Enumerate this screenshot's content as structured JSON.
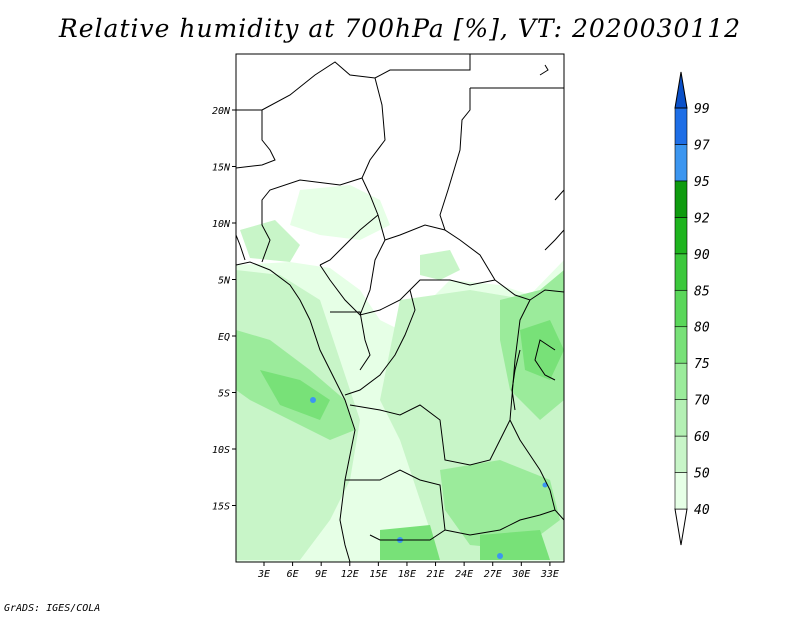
{
  "title": "Relative humidity at 700hPa [%], VT: 2020030112",
  "credit": "GrADS: IGES/COLA",
  "map": {
    "lat_ticks": [
      {
        "value": 20,
        "label": "20N"
      },
      {
        "value": 15,
        "label": "15N"
      },
      {
        "value": 10,
        "label": "10N"
      },
      {
        "value": 5,
        "label": "5N"
      },
      {
        "value": 0,
        "label": "EQ"
      },
      {
        "value": -5,
        "label": "5S"
      },
      {
        "value": -10,
        "label": "10S"
      },
      {
        "value": -15,
        "label": "15S"
      }
    ],
    "lon_ticks": [
      {
        "value": 3,
        "label": "3E"
      },
      {
        "value": 6,
        "label": "6E"
      },
      {
        "value": 9,
        "label": "9E"
      },
      {
        "value": 12,
        "label": "12E"
      },
      {
        "value": 15,
        "label": "15E"
      },
      {
        "value": 18,
        "label": "18E"
      },
      {
        "value": 21,
        "label": "21E"
      },
      {
        "value": 24,
        "label": "24E"
      },
      {
        "value": 27,
        "label": "27E"
      },
      {
        "value": 30,
        "label": "30E"
      },
      {
        "value": 33,
        "label": "33E"
      }
    ]
  },
  "colorbar": {
    "levels": [
      "40",
      "50",
      "60",
      "70",
      "75",
      "80",
      "85",
      "90",
      "92",
      "95",
      "97",
      "99"
    ],
    "colors": [
      "#ffffff",
      "#e6ffe6",
      "#c8f5c8",
      "#b4f0b4",
      "#9beb9b",
      "#78e178",
      "#5ad75a",
      "#3cc83c",
      "#1eb41e",
      "#0f9b0f",
      "#3c96f0",
      "#1e6ee6",
      "#0a50c8"
    ]
  }
}
